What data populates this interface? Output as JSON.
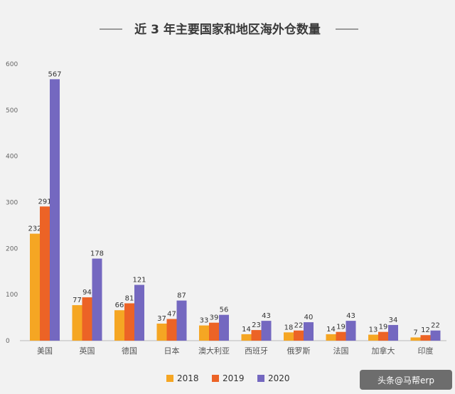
{
  "chart_data": {
    "type": "bar",
    "title": "近 3 年主要国家和地区海外仓数量",
    "categories": [
      "美国",
      "英国",
      "德国",
      "日本",
      "澳大利亚",
      "西班牙",
      "俄罗斯",
      "法国",
      "加拿大",
      "印度"
    ],
    "series": [
      {
        "name": "2018",
        "color": "#f5a623",
        "values": [
          232,
          77,
          66,
          37,
          33,
          14,
          18,
          14,
          13,
          7
        ]
      },
      {
        "name": "2019",
        "color": "#ec6326",
        "values": [
          291,
          94,
          81,
          47,
          39,
          23,
          22,
          19,
          19,
          12
        ]
      },
      {
        "name": "2020",
        "color": "#7468c0",
        "values": [
          567,
          178,
          121,
          87,
          56,
          43,
          40,
          43,
          34,
          22
        ]
      }
    ],
    "yticks": [
      "0",
      "100",
      "200",
      "300",
      "400",
      "500",
      "600"
    ],
    "ylim": [
      0,
      600
    ],
    "grid": false,
    "legend_position": "bottom"
  },
  "watermark": {
    "text": "头条@马帮erp"
  }
}
